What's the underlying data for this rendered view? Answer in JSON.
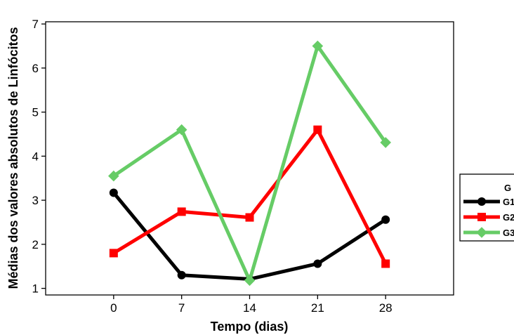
{
  "chart_data": {
    "type": "line",
    "xlabel": "Tempo (dias)",
    "ylabel": "Médias dos valores absolutos de Linfócitos",
    "x": [
      0,
      7,
      14,
      21,
      28
    ],
    "xlim": [
      -7,
      35
    ],
    "ylim": [
      0.85,
      7.05
    ],
    "yticks": [
      1,
      2,
      3,
      4,
      5,
      6,
      7
    ],
    "grid": false,
    "legend_position": "right",
    "legend_title": "G",
    "series": [
      {
        "name": "G1",
        "color": "#000000",
        "marker": "circle",
        "values": [
          3.17,
          1.3,
          1.21,
          1.56,
          2.56
        ]
      },
      {
        "name": "G2",
        "color": "#ff0000",
        "marker": "square",
        "values": [
          1.8,
          2.74,
          2.61,
          4.6,
          1.56
        ]
      },
      {
        "name": "G3",
        "color": "#66cc66",
        "marker": "diamond",
        "values": [
          3.55,
          4.6,
          1.18,
          6.5,
          4.31
        ]
      }
    ]
  }
}
